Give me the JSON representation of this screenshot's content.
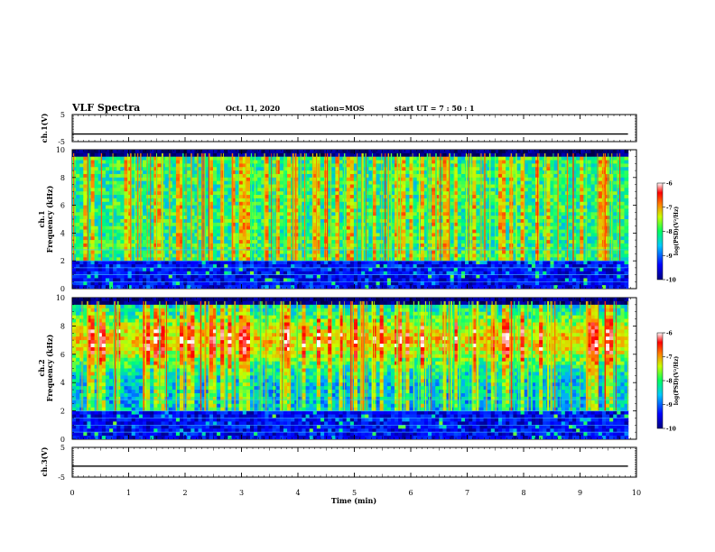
{
  "header": {
    "title": "VLF Spectra",
    "date": "Oct. 11, 2020",
    "station": "station=MOS",
    "start_ut": "start UT =  7 : 50 : 1"
  },
  "chart_data": [
    {
      "type": "line",
      "panel": "ch1-waveform",
      "ylabel": "ch.1(V)",
      "ylim": [
        -5,
        5
      ],
      "yticks": [
        "5",
        "-5"
      ],
      "x": [
        0,
        9.85
      ],
      "values": [
        -2.2,
        -2.2
      ]
    },
    {
      "type": "heatmap",
      "panel": "ch1-spectrogram",
      "ylabel": [
        "ch.1",
        "Frequency (kHz)"
      ],
      "ylim": [
        0,
        10
      ],
      "yticks": [
        "0",
        "2",
        "4",
        "6",
        "8",
        "10"
      ],
      "xlim": [
        0,
        9.85
      ],
      "colorbar": {
        "label": "log(PSD)(V²/Hz)",
        "range": [
          -10,
          -6
        ],
        "ticks": [
          "-6",
          "-7",
          "-8",
          "-9",
          "-10"
        ]
      }
    },
    {
      "type": "heatmap",
      "panel": "ch2-spectrogram",
      "ylabel": [
        "ch.2",
        "Frequency (kHz)"
      ],
      "ylim": [
        0,
        10
      ],
      "yticks": [
        "0",
        "2",
        "4",
        "6",
        "8",
        "10"
      ],
      "xlim": [
        0,
        9.85
      ],
      "colorbar": {
        "label": "log(PSD)(V²/Hz)",
        "range": [
          -10,
          -6
        ],
        "ticks": [
          "-6",
          "-7",
          "-8",
          "-9",
          "-10"
        ]
      }
    },
    {
      "type": "line",
      "panel": "ch3-waveform",
      "ylabel": "ch.3(V)",
      "ylim": [
        -5,
        5
      ],
      "yticks": [
        "5",
        "-5"
      ],
      "x": [
        0,
        9.85
      ],
      "values": [
        -1.3,
        -1.3
      ]
    }
  ],
  "xaxis": {
    "label": "Time (min)",
    "xlim": [
      0,
      10
    ],
    "ticks": [
      "0",
      "1",
      "2",
      "3",
      "4",
      "5",
      "6",
      "7",
      "8",
      "9",
      "10"
    ]
  }
}
